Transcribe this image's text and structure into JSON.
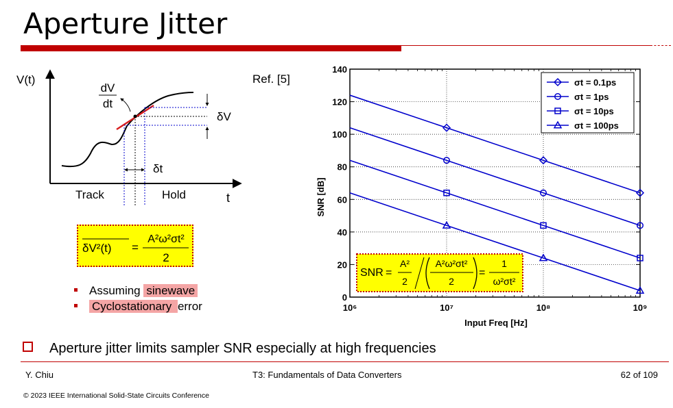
{
  "slide": {
    "title": "Aperture Jitter",
    "ref": "Ref. [5]",
    "bullets": [
      {
        "pre": "Assuming ",
        "hl": "sinewave",
        "post": ""
      },
      {
        "pre": "",
        "hl": "Cyclostationary ",
        "post": "error"
      }
    ],
    "main_point": "Aperture jitter limits sampler SNR especially at high frequencies",
    "footer": {
      "left": "Y. Chiu",
      "center": "T3: Fundamentals of Data Converters",
      "right": "62 of 109",
      "copyright": "© 2023 IEEE International Solid-State Circuits Conference"
    }
  },
  "sketch": {
    "y_label": "V(t)",
    "x_label": "t",
    "slope_num": "dV",
    "slope_den": "dt",
    "dv_label": "δV",
    "dt_label": "δt",
    "track_label": "Track",
    "hold_label": "Hold"
  },
  "equations": {
    "left_lhs": "δV²(t)",
    "left_num": "A²ω²σt²",
    "left_den": "2",
    "snr_label": "SNR",
    "snr_a_num": "A²",
    "snr_a_den": "2",
    "snr_b_num": "A²ω²σt²",
    "snr_b_den": "2",
    "snr_c_num": "1",
    "snr_c_den": "ω²σt²"
  },
  "colors": {
    "accent_red": "#c00000",
    "line_blue": "#0000cc",
    "highlight": "#ffff00",
    "bullet_highlight": "#f4a5a5"
  },
  "chart_data": {
    "type": "line",
    "xscale": "log",
    "x": [
      1000000,
      10000000,
      100000000,
      1000000000
    ],
    "x_tick_labels": [
      "10⁶",
      "10⁷",
      "10⁸",
      "10⁹"
    ],
    "xlabel": "Input Freq [Hz]",
    "ylabel": "SNR [dB]",
    "ylim": [
      0,
      140
    ],
    "y_ticks": [
      0,
      20,
      40,
      60,
      80,
      100,
      120,
      140
    ],
    "grid": "dotted",
    "legend_position": "top-right",
    "series": [
      {
        "name": "σt = 0.1ps",
        "marker": "diamond",
        "values": [
          124,
          104,
          84,
          64
        ]
      },
      {
        "name": "σt = 1ps",
        "marker": "circle",
        "values": [
          104,
          84,
          64,
          44
        ]
      },
      {
        "name": "σt = 10ps",
        "marker": "square",
        "values": [
          84,
          64,
          44,
          24
        ]
      },
      {
        "name": "σt = 100ps",
        "marker": "triangle",
        "values": [
          64,
          44,
          24,
          4
        ]
      }
    ]
  }
}
